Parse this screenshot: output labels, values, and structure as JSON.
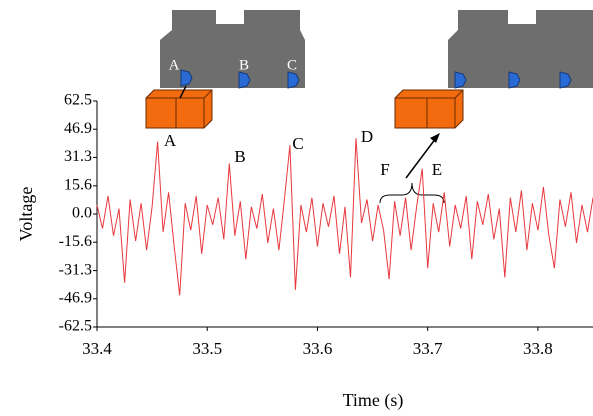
{
  "chart_data": {
    "type": "line",
    "x_label": "Time (s)",
    "y_label": "Voltage",
    "xlim": [
      33.4,
      33.85
    ],
    "ylim": [
      -62.5,
      62.5
    ],
    "xticks": [
      33.4,
      33.5,
      33.6,
      33.7,
      33.8
    ],
    "yticks": [
      62.5,
      46.9,
      31.3,
      15.6,
      {
        "value": 0,
        "label": "0.0"
      },
      -15.6,
      -31.3,
      -46.9,
      -62.5
    ],
    "grid": false,
    "series": [
      {
        "color": "#e8383d",
        "x": [
          33.4,
          33.405,
          33.41,
          33.415,
          33.42,
          33.425,
          33.43,
          33.435,
          33.44,
          33.445,
          33.45,
          33.455,
          33.46,
          33.465,
          33.47,
          33.475,
          33.48,
          33.485,
          33.49,
          33.495,
          33.5,
          33.505,
          33.51,
          33.515,
          33.52,
          33.525,
          33.53,
          33.535,
          33.54,
          33.545,
          33.55,
          33.555,
          33.56,
          33.565,
          33.57,
          33.575,
          33.58,
          33.585,
          33.59,
          33.595,
          33.6,
          33.605,
          33.61,
          33.615,
          33.62,
          33.625,
          33.63,
          33.635,
          33.64,
          33.645,
          33.65,
          33.655,
          33.66,
          33.665,
          33.67,
          33.675,
          33.68,
          33.685,
          33.69,
          33.695,
          33.7,
          33.705,
          33.71,
          33.715,
          33.72,
          33.725,
          33.73,
          33.735,
          33.74,
          33.745,
          33.75,
          33.755,
          33.76,
          33.765,
          33.77,
          33.775,
          33.78,
          33.785,
          33.79,
          33.795,
          33.8,
          33.805,
          33.81,
          33.815,
          33.82,
          33.825,
          33.83,
          33.835,
          33.84,
          33.845,
          33.85
        ],
        "values": [
          5,
          -8,
          10,
          -12,
          3,
          -38,
          8,
          -15,
          6,
          -20,
          4,
          40,
          -10,
          12,
          -18,
          -45,
          6,
          -9,
          10,
          -22,
          5,
          -6,
          9,
          -14,
          28,
          -12,
          7,
          -25,
          4,
          -8,
          11,
          -16,
          3,
          -20,
          8,
          38,
          -42,
          5,
          -10,
          9,
          -18,
          6,
          -7,
          10,
          -22,
          4,
          -35,
          42,
          -5,
          8,
          -15,
          5,
          -9,
          -36,
          7,
          -12,
          9,
          -20,
          4,
          25,
          -30,
          6,
          -10,
          12,
          -18,
          5,
          -8,
          10,
          -25,
          7,
          -6,
          11,
          -14,
          3,
          -35,
          9,
          -10,
          13,
          -20,
          6,
          -9,
          15,
          -12,
          -30,
          8,
          -7,
          12,
          -16,
          5,
          -10,
          9
        ]
      }
    ],
    "annotations": [
      "A",
      "B",
      "C",
      "D",
      "E",
      "F"
    ],
    "diagram_labels": [
      "A",
      "B",
      "C"
    ]
  }
}
